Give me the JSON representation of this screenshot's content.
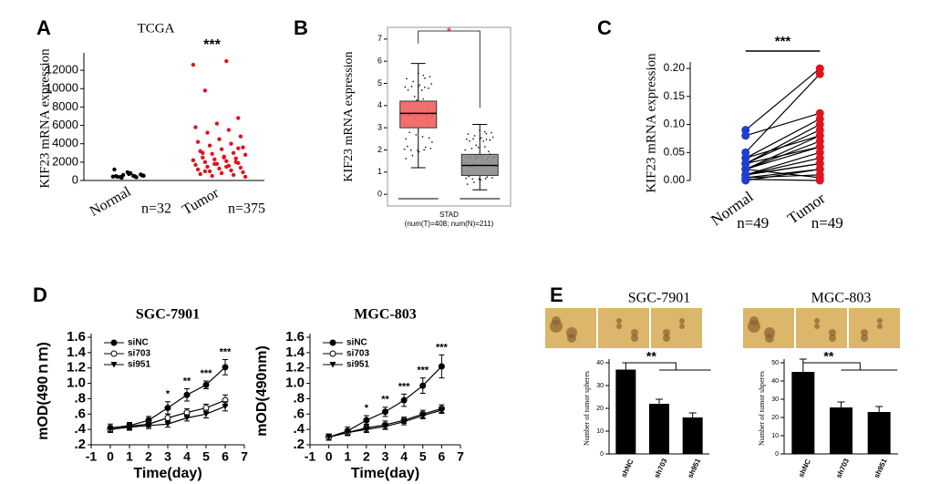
{
  "panel_labels": [
    "A",
    "B",
    "C",
    "D",
    "E"
  ],
  "chart_data": [
    {
      "type": "strip",
      "title": "TCGA",
      "y_label": "KIF23 mRNA expression",
      "significance": "***",
      "categories": [
        "Normal",
        "Tumor"
      ],
      "sample_sizes": [
        "n=32",
        "n=375"
      ],
      "colors": [
        "#000000",
        "#e0141e"
      ],
      "values": [
        [
          420,
          500,
          380,
          650,
          900,
          1200,
          450,
          300,
          550,
          700,
          480,
          350,
          600,
          520,
          800,
          400
        ],
        [
          12600,
          13000,
          9800,
          6800,
          6200,
          5800,
          5500,
          5200,
          4800,
          4500,
          4200,
          4000,
          3800,
          3600,
          3400,
          3200,
          3000,
          2900,
          2800,
          2600,
          2500,
          2400,
          2300,
          2200,
          2100,
          2000,
          1900,
          1800,
          1700,
          1600,
          1500,
          1400,
          1300,
          1200,
          1100,
          1000,
          900,
          800,
          700,
          600,
          500,
          400,
          2500,
          3000,
          2000,
          1800,
          2200,
          1500,
          1000,
          3500
        ]
      ],
      "ylim": [
        0,
        13500
      ],
      "yticks": [
        0,
        2000,
        4000,
        6000,
        8000,
        10000,
        12000
      ]
    },
    {
      "type": "box",
      "y_label": "KIF23 mRNA expression",
      "x_label": "STAD",
      "subtitle": "(num(T)=408; num(N)=211)",
      "significance": "*",
      "categories": [
        null,
        null
      ],
      "colors": [
        "#f0625f",
        "#8c8c8c"
      ],
      "boxes": [
        {
          "min": 1.2,
          "q1": 3.0,
          "median": 3.65,
          "q3": 4.2,
          "max": 5.9
        },
        {
          "min": 0.2,
          "q1": 0.85,
          "median": 1.3,
          "q3": 1.8,
          "max": 3.15
        }
      ],
      "ylim": [
        -0.2,
        7.2
      ],
      "yticks": [
        0,
        1,
        2,
        3,
        4,
        5,
        6,
        7
      ]
    },
    {
      "type": "paired",
      "y_label": "KIF23 mRNA expression",
      "significance": "***",
      "categories": [
        "Normal",
        "Tumor"
      ],
      "sample_sizes": [
        "n=49",
        "n=49"
      ],
      "colors": [
        "#1f3fd0",
        "#e0141e"
      ],
      "normal": [
        0.09,
        0.08,
        0.05,
        0.04,
        0.03,
        0.03,
        0.02,
        0.02,
        0.02,
        0.01,
        0.01,
        0.01,
        0.005,
        0.005,
        0.002,
        0.01,
        0.02,
        0.0,
        0.04,
        0.03
      ],
      "tumor": [
        0.2,
        0.12,
        0.19,
        0.11,
        0.1,
        0.09,
        0.08,
        0.07,
        0.06,
        0.05,
        0.04,
        0.03,
        0.02,
        0.01,
        0.0,
        0.03,
        0.005,
        0.02,
        0.08,
        0.06
      ],
      "ylim": [
        0,
        0.205
      ],
      "yticks": [
        {
          "value": 0,
          "label": "0.00"
        },
        {
          "value": 0.05,
          "label": "0.05"
        },
        {
          "value": 0.1,
          "label": "0.10"
        },
        {
          "value": 0.15,
          "label": "0.15"
        },
        {
          "value": 0.2,
          "label": "0.20"
        }
      ]
    },
    {
      "type": "line",
      "title": "SGC-7901",
      "y_label": "mOD(490ｎｍ)",
      "x_label": "Time(day)",
      "x": [
        0,
        1,
        2,
        3,
        4,
        5,
        6
      ],
      "series": [
        {
          "name": "siNC",
          "color": "#000000",
          "marker": "circle-filled",
          "values": [
            0.42,
            0.45,
            0.52,
            0.68,
            0.85,
            0.98,
            1.21
          ],
          "errors": [
            0.05,
            0.04,
            0.05,
            0.08,
            0.08,
            0.05,
            0.1
          ]
        },
        {
          "name": "si703",
          "color": "#000000",
          "marker": "circle-open",
          "values": [
            0.4,
            0.44,
            0.47,
            0.55,
            0.62,
            0.68,
            0.78
          ],
          "errors": [
            0.04,
            0.04,
            0.04,
            0.05,
            0.05,
            0.05,
            0.07
          ]
        },
        {
          "name": "si951",
          "color": "#000000",
          "marker": "triangle",
          "values": [
            0.4,
            0.43,
            0.45,
            0.47,
            0.55,
            0.6,
            0.7
          ],
          "errors": [
            0.04,
            0.04,
            0.04,
            0.04,
            0.04,
            0.05,
            0.06
          ]
        }
      ],
      "annotations": [
        "*",
        "**",
        "***",
        "***"
      ],
      "annotation_x": [
        3,
        4,
        5,
        6
      ],
      "xlim": [
        -1,
        7
      ],
      "xticks": [
        -1,
        0,
        1,
        2,
        3,
        4,
        5,
        6,
        7
      ],
      "ylim": [
        0.2,
        1.6
      ],
      "yticks": [
        {
          "value": 0.2,
          "label": ".2"
        },
        {
          "value": 0.4,
          "label": ".4"
        },
        {
          "value": 0.6,
          "label": ".6"
        },
        {
          "value": 0.8,
          "label": ".8"
        },
        {
          "value": 1.0,
          "label": "1.0"
        },
        1.2,
        1.4,
        1.6
      ]
    },
    {
      "type": "line",
      "title": "MGC-803",
      "y_label": "mOD(490nm)",
      "x_label": "Time(day)",
      "x": [
        0,
        1,
        2,
        3,
        4,
        5,
        6
      ],
      "series": [
        {
          "name": "siNC",
          "color": "#000000",
          "marker": "circle-filled",
          "values": [
            0.3,
            0.38,
            0.52,
            0.63,
            0.78,
            0.97,
            1.22
          ],
          "errors": [
            0.04,
            0.05,
            0.06,
            0.06,
            0.08,
            0.1,
            0.15
          ]
        },
        {
          "name": "si703",
          "color": "#000000",
          "marker": "circle-open",
          "values": [
            0.3,
            0.36,
            0.42,
            0.46,
            0.52,
            0.6,
            0.67
          ],
          "errors": [
            0.04,
            0.04,
            0.05,
            0.05,
            0.04,
            0.05,
            0.05
          ]
        },
        {
          "name": "si951",
          "color": "#000000",
          "marker": "triangle",
          "values": [
            0.3,
            0.36,
            0.4,
            0.44,
            0.5,
            0.58,
            0.65
          ],
          "errors": [
            0.04,
            0.04,
            0.04,
            0.04,
            0.04,
            0.04,
            0.04
          ]
        }
      ],
      "annotations": [
        "*",
        "**",
        "***",
        "***",
        "***"
      ],
      "annotation_x": [
        2,
        3,
        4,
        5,
        6
      ],
      "xlim": [
        -1,
        7
      ],
      "xticks": [
        -1,
        0,
        1,
        2,
        3,
        4,
        5,
        6,
        7
      ],
      "ylim": [
        0.2,
        1.6
      ],
      "yticks": [
        {
          "value": 0.2,
          "label": ".2"
        },
        {
          "value": 0.4,
          "label": ".4"
        },
        {
          "value": 0.6,
          "label": ".6"
        },
        {
          "value": 0.8,
          "label": ".8"
        },
        {
          "value": 1.0,
          "label": "1.0"
        },
        1.2,
        1.4,
        1.6
      ]
    },
    {
      "type": "bar",
      "title": "SGC-7901",
      "y_label": "Number of tumor spheres",
      "significance": "**",
      "color": "#000000",
      "categories": [
        "shNC",
        "sh703",
        "sh951"
      ],
      "values": [
        37,
        22,
        16
      ],
      "errors": [
        3,
        2,
        2
      ],
      "ylim": [
        0,
        40
      ],
      "yticks": [
        0,
        10,
        20,
        30,
        40
      ]
    },
    {
      "type": "bar",
      "title": "MGC-803",
      "y_label": "Number of tumor shperes",
      "significance": "**",
      "color": "#000000",
      "categories": [
        "shNC",
        "sh703",
        "sh951"
      ],
      "values": [
        45,
        25.5,
        23
      ],
      "errors": [
        7,
        3,
        3
      ],
      "ylim": [
        0,
        50
      ],
      "yticks": [
        0,
        10,
        20,
        30,
        40,
        50
      ]
    }
  ]
}
